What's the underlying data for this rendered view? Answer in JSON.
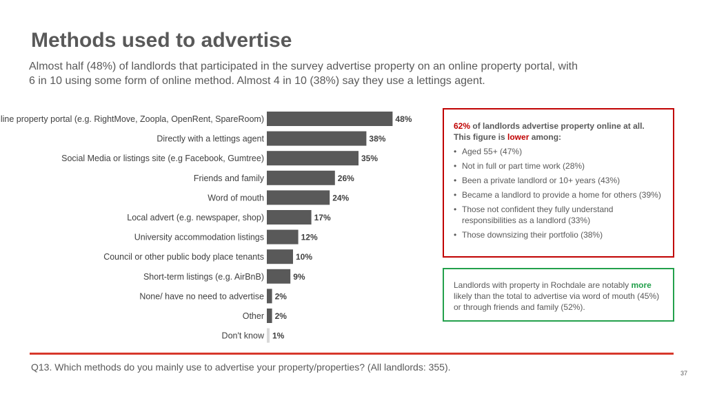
{
  "title": "Methods used to advertise",
  "subtitle": "Almost half (48%) of landlords that participated in the survey advertise property on an online property portal, with 6 in 10 using some form of online method. Almost 4 in 10 (38%) say they use a lettings agent.",
  "colors": {
    "bar": "#595959",
    "bar_light": "#d9d9d9",
    "accent_red": "#c00000",
    "accent_green": "#22a04b",
    "divider": "#d7382b"
  },
  "chart_data": {
    "type": "bar",
    "orientation": "horizontal",
    "categories": [
      "Online property portal (e.g. RightMove, Zoopla, OpenRent, SpareRoom)",
      "Directly with a lettings agent",
      "Social Media or listings site (e.g Facebook, Gumtree)",
      "Friends and family",
      "Word of mouth",
      "Local advert (e.g. newspaper, shop)",
      "University accommodation listings",
      "Council or other public body place tenants",
      "Short-term listings (e.g. AirBnB)",
      "None/ have no need to advertise",
      "Other",
      "Don't know"
    ],
    "values": [
      48,
      38,
      35,
      26,
      24,
      17,
      12,
      10,
      9,
      2,
      2,
      1
    ],
    "value_labels": [
      "48%",
      "38%",
      "35%",
      "26%",
      "24%",
      "17%",
      "12%",
      "10%",
      "9%",
      "2%",
      "2%",
      "1%"
    ],
    "highlight_last": true,
    "xlim": [
      0,
      100
    ]
  },
  "box_red": {
    "lead_value": "62%",
    "lead_text": " of landlords advertise property online at all. This figure is ",
    "lead_em": "lower",
    "lead_tail": " among:",
    "bullets": [
      "Aged 55+ (47%)",
      "Not in full or part time work (28%)",
      "Been a private landlord or 10+ years (43%)",
      "Became a landlord to provide a home for others (39%)",
      "Those not confident they fully understand responsibilities as a landlord (33%)",
      "Those downsizing their portfolio (38%)"
    ]
  },
  "box_green": {
    "text_a": "Landlords with property in Rochdale are notably ",
    "em": "more",
    "text_b": " likely than the total to advertise via word of mouth (45%) or through friends and family (52%)."
  },
  "footnote": "Q13. Which methods do you mainly use to advertise your property/properties? (All landlords: 355).",
  "page_number": "37"
}
